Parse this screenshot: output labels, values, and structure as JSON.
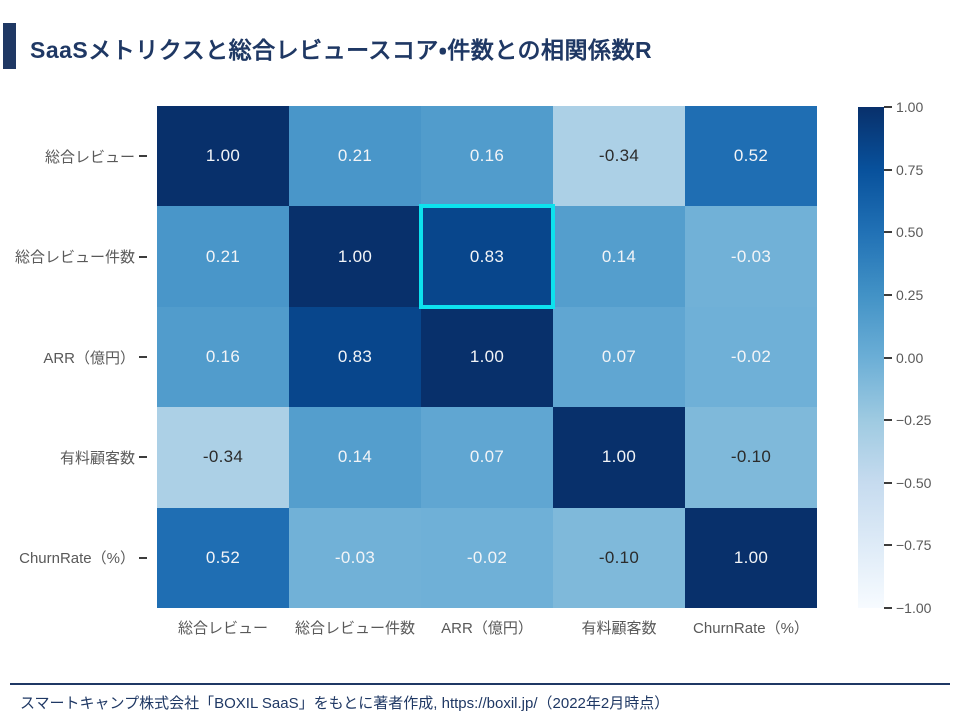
{
  "title": "SaaSメトリクスと総合レビュースコア・件数との相関係数R",
  "footer": {
    "source": "スマートキャンプ株式会社「BOXIL SaaS」をもとに著者作成, https://boxil.jp/（2022年2月時点）"
  },
  "colors": {
    "accent": "#1f3864",
    "axis_label": "#595959",
    "cell_text_light": "#f2f4f7",
    "cell_text_dark": "#2b2b2b",
    "highlight": "#0de2ee"
  },
  "chart_data": {
    "type": "heatmap",
    "title": "SaaSメトリクスと総合レビュースコア・件数との相関係数R",
    "categories": [
      "総合レビュー",
      "総合レビュー件数",
      "ARR（億円）",
      "有料顧客数",
      "ChurnRate（%）"
    ],
    "matrix": [
      [
        1.0,
        0.21,
        0.16,
        -0.34,
        0.52
      ],
      [
        0.21,
        1.0,
        0.83,
        0.14,
        -0.03
      ],
      [
        0.16,
        0.83,
        1.0,
        0.07,
        -0.02
      ],
      [
        -0.34,
        0.14,
        0.07,
        1.0,
        -0.1
      ],
      [
        0.52,
        -0.03,
        -0.02,
        -0.1,
        1.0
      ]
    ],
    "value_decimals": 2,
    "vmin": -1,
    "vmax": 1,
    "colormap": {
      "name": "Blues",
      "stops": [
        {
          "t": 0.0,
          "color": "#f7fbff"
        },
        {
          "t": 0.125,
          "color": "#deebf7"
        },
        {
          "t": 0.25,
          "color": "#c6dbef"
        },
        {
          "t": 0.375,
          "color": "#9ecae1"
        },
        {
          "t": 0.5,
          "color": "#6baed6"
        },
        {
          "t": 0.625,
          "color": "#4292c6"
        },
        {
          "t": 0.75,
          "color": "#2171b5"
        },
        {
          "t": 0.875,
          "color": "#08519c"
        },
        {
          "t": 1.0,
          "color": "#08306b"
        }
      ]
    },
    "highlight_cell": {
      "row": 1,
      "col": 2,
      "value": 0.83
    },
    "colorbar": {
      "position": "right",
      "ticks": [
        "1.00",
        "0.75",
        "0.50",
        "0.25",
        "0.00",
        "−0.25",
        "−0.50",
        "−0.75",
        "−1.00"
      ]
    },
    "legend_position": "right",
    "grid": false
  }
}
